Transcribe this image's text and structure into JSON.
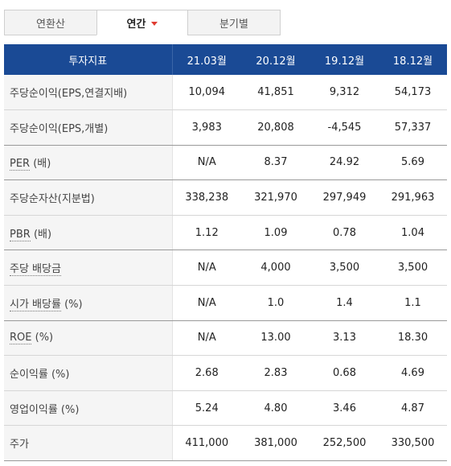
{
  "tabs": [
    {
      "label": "연환산"
    },
    {
      "label": "연간"
    },
    {
      "label": "분기별"
    }
  ],
  "table": {
    "header": [
      "투자지표",
      "21.03월",
      "20.12월",
      "19.12월",
      "18.12월"
    ],
    "rows": [
      {
        "label": "주당순이익(EPS,연결지배)",
        "values": [
          "10,094",
          "41,851",
          "9,312",
          "54,173"
        ]
      },
      {
        "label": "주당순이익(EPS,개별)",
        "values": [
          "3,983",
          "20,808",
          "-4,545",
          "57,337"
        ]
      },
      {
        "label": "PER",
        "unit": "(배)",
        "values": [
          "N/A",
          "8.37",
          "24.92",
          "5.69"
        ]
      },
      {
        "label": "주당순자산(지분법)",
        "values": [
          "338,238",
          "321,970",
          "297,949",
          "291,963"
        ]
      },
      {
        "label": "PBR",
        "unit": "(배)",
        "values": [
          "1.12",
          "1.09",
          "0.78",
          "1.04"
        ]
      },
      {
        "label": "주당 배당금",
        "values": [
          "N/A",
          "4,000",
          "3,500",
          "3,500"
        ]
      },
      {
        "label": "시가 배당률",
        "unit": "(%)",
        "values": [
          "N/A",
          "1.0",
          "1.4",
          "1.1"
        ]
      },
      {
        "label": "ROE",
        "unit": "(%)",
        "values": [
          "N/A",
          "13.00",
          "3.13",
          "18.30"
        ]
      },
      {
        "label": "순이익률 (%)",
        "values": [
          "2.68",
          "2.83",
          "0.68",
          "4.69"
        ]
      },
      {
        "label": "영업이익률 (%)",
        "values": [
          "5.24",
          "4.80",
          "3.46",
          "4.87"
        ]
      },
      {
        "label": "주가",
        "values": [
          "411,000",
          "381,000",
          "252,500",
          "330,500"
        ]
      }
    ]
  },
  "colors": {
    "header_bg": "#1a4a95",
    "caret": "#e03c31"
  }
}
